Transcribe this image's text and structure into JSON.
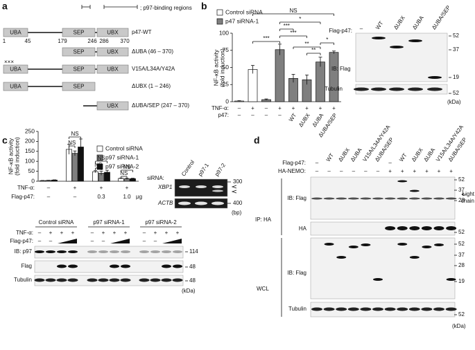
{
  "panels": [
    "a",
    "b",
    "c",
    "d"
  ],
  "a": {
    "legend": "; p97-binding regions",
    "constructs": [
      {
        "label": "p47-WT",
        "domains": [
          "UBA",
          "SEP",
          "UBX"
        ]
      },
      {
        "label": "ΔUBA (46 – 370)",
        "domains": [
          "SEP",
          "UBX"
        ]
      },
      {
        "label": "V15A/L34A/Y42A",
        "mark": "×××",
        "domains": [
          "UBA",
          "SEP",
          "UBX"
        ]
      },
      {
        "label": "ΔUBX (1 – 246)",
        "domains": [
          "UBA",
          "SEP"
        ]
      },
      {
        "label": "ΔUBA/SEP (247 – 370)",
        "domains": [
          "UBX"
        ]
      }
    ],
    "residues": [
      1,
      45,
      179,
      246,
      286,
      370
    ]
  },
  "chart_data": [
    {
      "type": "bar",
      "y_label": [
        "NF-κB activity",
        "(fold induction)"
      ],
      "ylim": [
        0,
        100
      ],
      "yticks": [
        0,
        25,
        50,
        75,
        100
      ],
      "series": [
        {
          "name": "Control siRNA",
          "color": "#ffffff",
          "values": [
            1,
            47,
            null,
            null,
            null,
            null,
            null,
            null
          ],
          "errors": [
            0.5,
            6,
            null,
            null,
            null,
            null,
            null,
            null
          ]
        },
        {
          "name": "p47 siRNA-1",
          "color": "#7f7f7f",
          "values": [
            null,
            null,
            3,
            76,
            34,
            32,
            58,
            72
          ],
          "errors": [
            null,
            null,
            1,
            8,
            6,
            7,
            7,
            2
          ]
        }
      ],
      "rows": [
        {
          "label": "TNF-α:",
          "values": [
            "–",
            "+",
            "–",
            "+",
            "+",
            "+",
            "+",
            "+"
          ]
        },
        {
          "label": "p47:",
          "values": [
            "–",
            "–",
            "–",
            "–",
            "WT",
            "ΔUBX",
            "ΔUBA",
            "ΔUBA/SEP"
          ]
        }
      ],
      "significance": [
        "***",
        "NS",
        "*",
        "***",
        "***",
        "**",
        "**",
        "*"
      ]
    },
    {
      "type": "bar",
      "y_label": [
        "NF-κB activity",
        "(fold induction)"
      ],
      "ylim": [
        0,
        250
      ],
      "yticks": [
        0,
        50,
        100,
        150,
        200,
        250
      ],
      "series": [
        {
          "name": "Control siRNA",
          "color": "#ffffff",
          "values": [
            3,
            160,
            48,
            14
          ],
          "errors": [
            1,
            25,
            5,
            2
          ]
        },
        {
          "name": "p97 siRNA-1",
          "color": "#7f7f7f",
          "values": [
            4,
            140,
            40,
            12
          ],
          "errors": [
            1,
            12,
            10,
            3
          ]
        },
        {
          "name": "p97 siRNA-2",
          "color": "#111111",
          "values": [
            6,
            172,
            45,
            13
          ],
          "errors": [
            1,
            40,
            10,
            2
          ]
        }
      ],
      "rows": [
        {
          "label": "TNF-α:",
          "values": [
            "–",
            "+",
            "+",
            "+"
          ]
        },
        {
          "label": "Flag-p47:",
          "values": [
            "–",
            "–",
            "0.3",
            "1.0"
          ],
          "unit": "μg"
        }
      ],
      "significance": [
        "NS",
        "NS",
        "NS",
        "NS",
        "NS",
        "NS"
      ]
    }
  ],
  "b_blot": {
    "row_label": "Flag-p47:",
    "lanes": [
      "–",
      "WT",
      "ΔUBX",
      "ΔUBA",
      "ΔUBA/SEP"
    ],
    "blots": [
      "IB: Flag",
      "Tubulin"
    ],
    "markers": [
      52,
      37,
      19,
      52
    ],
    "unit": "(kDa)"
  },
  "c_gel": {
    "row_label": "siRNA:",
    "lanes": [
      "Control",
      "p97-1",
      "p97-2"
    ],
    "genes": [
      "XBP1",
      "ACTB"
    ],
    "markers": [
      300,
      400
    ],
    "unit": "(bp)"
  },
  "c_blot": {
    "groups": [
      "Control siRNA",
      "p97 siRNA-1",
      "p97 siRNA-2"
    ],
    "rows": [
      {
        "label": "TNF-α:",
        "values": [
          "–",
          "+",
          "+",
          "+",
          "–",
          "+",
          "+",
          "+",
          "–",
          "+",
          "+",
          "+"
        ]
      },
      {
        "label": "Flag-p47:",
        "values": [
          "–",
          "–",
          null,
          null,
          "–",
          "–",
          null,
          null,
          "–",
          "–",
          null,
          null
        ]
      }
    ],
    "blots": [
      "IB: p97",
      "Flag",
      "Tubulin"
    ],
    "markers": [
      114,
      48,
      48
    ],
    "unit": "(kDa)"
  },
  "d": {
    "rows": [
      {
        "label": "Flag-p47:",
        "values": [
          "–",
          "WT",
          "ΔUBX",
          "ΔUBA",
          "V15A/L34A/Y42A",
          "ΔUBA/SEP",
          "–",
          "WT",
          "ΔUBX",
          "ΔUBA",
          "V15A/L34A/Y42A",
          "ΔUBA/SEP"
        ]
      },
      {
        "label": "HA-NEMO:",
        "values": [
          "–",
          "–",
          "–",
          "–",
          "–",
          "–",
          "+",
          "+",
          "+",
          "+",
          "+",
          "+"
        ]
      }
    ],
    "sections": [
      "IP: HA",
      "WCL"
    ],
    "blots": [
      "IB: Flag",
      "HA",
      "IB: Flag",
      "Tubulin"
    ],
    "markers": [
      52,
      37,
      28,
      52,
      52,
      37,
      28,
      19,
      52
    ],
    "light_chain": [
      "Light",
      "chain"
    ],
    "unit": "(kDa)"
  }
}
